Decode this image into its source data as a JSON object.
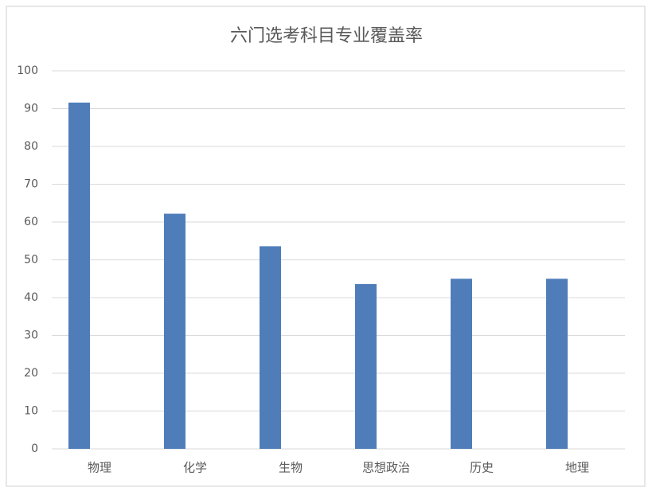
{
  "chart_data": {
    "type": "bar",
    "title": "六门选考科目专业覆盖率",
    "categories": [
      "物理",
      "化学",
      "生物",
      "思想政治",
      "历史",
      "地理"
    ],
    "values": [
      91.6,
      62.2,
      53.6,
      43.6,
      45,
      45
    ],
    "color": "#4f7dba",
    "ylim": [
      0,
      100
    ],
    "yticks": [
      0,
      10,
      20,
      30,
      40,
      50,
      60,
      70,
      80,
      90,
      100
    ],
    "grid": true
  }
}
